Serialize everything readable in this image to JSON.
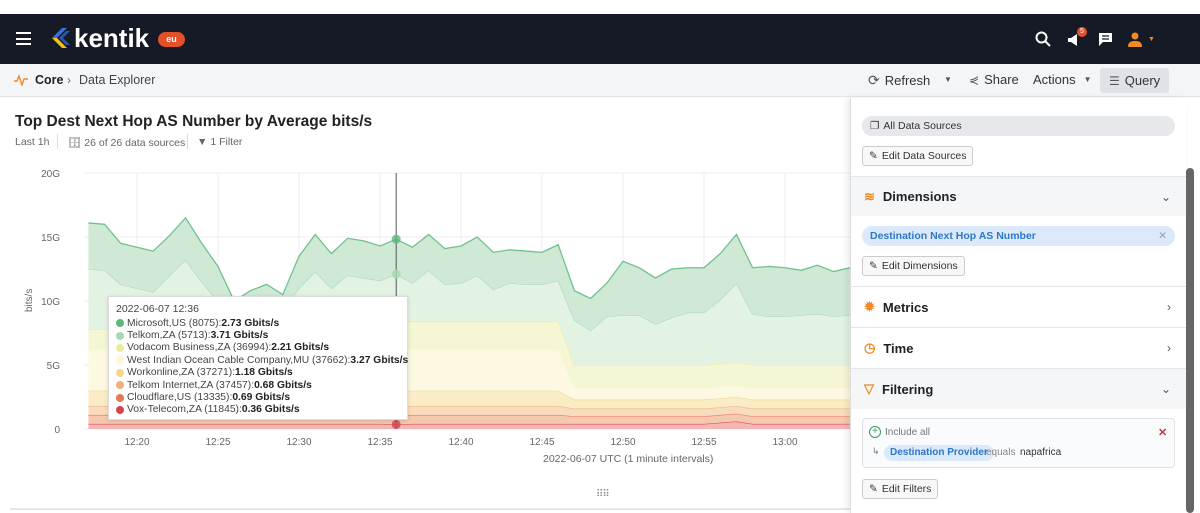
{
  "nav": {
    "brand": "kentik",
    "region_badge": "eu",
    "notification_count": "5",
    "icons": [
      "menu-icon",
      "search-icon",
      "notifications-icon",
      "chat-icon",
      "user-icon"
    ]
  },
  "breadcrumb": {
    "root": "Core",
    "current": "Data Explorer"
  },
  "toolbar": {
    "refresh": "Refresh",
    "share": "Share",
    "actions": "Actions",
    "query": "Query"
  },
  "chart_header": {
    "title": "Top Dest Next Hop AS Number by Average bits/s",
    "time_range": "Last 1h",
    "data_sources": "26 of 26 data sources",
    "filters": "1 Filter"
  },
  "panel": {
    "data_sources_pill": "All Data Sources",
    "edit_data_sources": "Edit Data Sources",
    "dimensions": "Dimensions",
    "dimension_pill": "Destination Next Hop AS Number",
    "edit_dimensions": "Edit Dimensions",
    "metrics": "Metrics",
    "time": "Time",
    "filtering": "Filtering",
    "filter_group": "Include all",
    "filter_field": "Destination Provider",
    "filter_op": "equals",
    "filter_value": "napafrica",
    "edit_filters": "Edit Filters"
  },
  "tooltip": {
    "time": "2022-06-07 12:36",
    "rows": [
      {
        "label": "Microsoft,US (8075): ",
        "value": "2.73 Gbits/s",
        "color": "#5cb87e"
      },
      {
        "label": "Telkom,ZA (5713): ",
        "value": "3.71 Gbits/s",
        "color": "#a6d8b2"
      },
      {
        "label": "Vodacom Business,ZA (36994): ",
        "value": "2.21 Gbits/s",
        "color": "#e9ec9e"
      },
      {
        "label": "West Indian Ocean Cable Company,MU (37662): ",
        "value": "3.27 Gbits/s",
        "color": "#fbf6d6"
      },
      {
        "label": "Workonline,ZA (37271): ",
        "value": "1.18 Gbits/s",
        "color": "#f1d98c"
      },
      {
        "label": "Telkom Internet,ZA (37457): ",
        "value": "0.68 Gbits/s",
        "color": "#efb07a"
      },
      {
        "label": "Cloudflare,US (13335): ",
        "value": "0.69 Gbits/s",
        "color": "#e8775a"
      },
      {
        "label": "Vox-Telecom,ZA (11845): ",
        "value": "0.36 Gbits/s",
        "color": "#d4434f"
      }
    ]
  },
  "chart_data": {
    "type": "area",
    "stacked": true,
    "xlabel": "2022-06-07 UTC (1 minute intervals)",
    "ylabel": "bits/s",
    "x_start": "12:17",
    "x_end": "13:04",
    "x_interval_minutes": 1,
    "x_ticks": [
      "12:20",
      "12:25",
      "12:30",
      "12:35",
      "12:40",
      "12:45",
      "12:50",
      "12:55",
      "13:00"
    ],
    "y_ticks": [
      "0",
      "5G",
      "10G",
      "15G",
      "20G"
    ],
    "ylim": [
      0,
      20
    ],
    "y_unit": "Gbits/s",
    "grid": true,
    "hover_x": "12:36",
    "series": [
      {
        "name": "Vox-Telecom,ZA (11845)",
        "color": "#d4434f",
        "values": [
          0.4,
          0.4,
          0.4,
          0.4,
          0.4,
          0.4,
          0.4,
          0.4,
          0.4,
          0.4,
          0.4,
          0.4,
          0.4,
          0.4,
          0.4,
          0.4,
          0.4,
          0.4,
          0.4,
          0.36,
          0.4,
          0.4,
          0.4,
          0.4,
          0.4,
          0.4,
          0.4,
          0.4,
          0.4,
          0.4,
          0.4,
          0.4,
          0.4,
          0.4,
          0.4,
          0.4,
          0.4,
          0.4,
          0.4,
          0.5,
          0.6,
          0.4,
          0.4,
          0.4,
          0.4,
          0.4,
          0.4,
          0.4
        ]
      },
      {
        "name": "Cloudflare,US (13335)",
        "color": "#e8775a",
        "values": [
          0.7,
          0.7,
          0.7,
          0.7,
          0.7,
          0.7,
          0.7,
          0.7,
          0.7,
          0.7,
          0.7,
          0.7,
          0.7,
          0.7,
          0.7,
          0.7,
          0.7,
          0.7,
          0.7,
          0.69,
          0.7,
          0.7,
          0.7,
          0.7,
          0.7,
          0.7,
          0.7,
          0.7,
          0.7,
          0.7,
          0.6,
          0.6,
          0.6,
          0.6,
          0.6,
          0.6,
          0.6,
          0.6,
          0.6,
          0.6,
          0.6,
          0.6,
          0.6,
          0.6,
          0.6,
          0.6,
          0.6,
          0.6
        ]
      },
      {
        "name": "Telkom Internet,ZA (37457)",
        "color": "#efb07a",
        "values": [
          0.7,
          0.7,
          0.7,
          0.7,
          0.7,
          0.7,
          0.7,
          0.7,
          0.7,
          0.7,
          0.7,
          0.7,
          0.7,
          0.7,
          0.7,
          0.7,
          0.7,
          0.7,
          0.7,
          0.68,
          0.7,
          0.7,
          0.7,
          0.7,
          0.7,
          0.7,
          0.7,
          0.7,
          0.7,
          0.7,
          0.6,
          0.6,
          0.6,
          0.6,
          0.6,
          0.6,
          0.6,
          0.6,
          0.6,
          0.6,
          0.6,
          0.6,
          0.6,
          0.6,
          0.6,
          0.6,
          0.6,
          0.6
        ]
      },
      {
        "name": "Workonline,ZA (37271)",
        "color": "#f1d98c",
        "values": [
          1.2,
          1.2,
          1.2,
          1.2,
          1.2,
          1.2,
          1.2,
          1.2,
          1.2,
          1.2,
          1.2,
          1.2,
          1.2,
          1.2,
          1.2,
          1.2,
          1.2,
          1.2,
          1.2,
          1.18,
          1.2,
          1.2,
          1.2,
          1.2,
          1.2,
          1.2,
          1.2,
          1.2,
          1.2,
          1.2,
          0.7,
          0.7,
          0.7,
          0.7,
          0.7,
          0.7,
          0.7,
          0.7,
          0.7,
          0.7,
          0.7,
          0.7,
          0.7,
          0.7,
          0.7,
          0.7,
          0.7,
          0.7
        ]
      },
      {
        "name": "West Indian Ocean Cable Company,MU (37662)",
        "color": "#fbf6d6",
        "values": [
          3.2,
          3.2,
          3.2,
          3.2,
          3.2,
          3.2,
          3.2,
          3.2,
          3.2,
          3.2,
          3.2,
          3.2,
          3.2,
          3.2,
          3.2,
          3.2,
          3.2,
          3.2,
          3.2,
          3.27,
          3.2,
          3.2,
          3.2,
          3.2,
          3.2,
          3.2,
          3.2,
          3.2,
          3.2,
          3.2,
          0.9,
          0.9,
          0.9,
          0.9,
          0.9,
          0.9,
          0.9,
          0.9,
          0.9,
          0.9,
          0.9,
          0.9,
          0.9,
          0.9,
          0.9,
          0.9,
          0.9,
          0.9
        ]
      },
      {
        "name": "Vodacom Business,ZA (36994)",
        "color": "#e9ec9e",
        "values": [
          1.6,
          1.6,
          1.6,
          1.6,
          1.6,
          1.6,
          1.6,
          1.6,
          1.6,
          1.6,
          1.6,
          1.6,
          1.6,
          2.2,
          2.2,
          2.2,
          2.2,
          2.2,
          2.2,
          2.21,
          2.2,
          2.2,
          2.2,
          2.2,
          2.2,
          2.2,
          2.2,
          2.2,
          2.2,
          2.2,
          1.8,
          1.8,
          1.8,
          1.8,
          1.8,
          1.8,
          1.8,
          1.8,
          1.8,
          1.8,
          1.8,
          1.8,
          1.8,
          1.8,
          1.8,
          1.8,
          1.8,
          1.8
        ]
      },
      {
        "name": "Telkom,ZA (5713)",
        "color": "#a6d8b2",
        "values": [
          4.7,
          4.6,
          3.5,
          3.2,
          2.9,
          4.2,
          5.4,
          3.7,
          2.2,
          1.2,
          1.7,
          2.0,
          1.5,
          2.6,
          3.9,
          2.6,
          3.6,
          3.4,
          3.2,
          3.71,
          3.0,
          4.0,
          2.9,
          3.0,
          3.6,
          2.5,
          3.0,
          2.9,
          2.9,
          3.2,
          3.5,
          2.7,
          3.8,
          3.9,
          3.9,
          3.2,
          3.7,
          4.1,
          4.1,
          5.0,
          6.2,
          4.0,
          3.8,
          3.8,
          3.9,
          4.0,
          3.8,
          3.9
        ]
      },
      {
        "name": "Microsoft,US (8075)",
        "color": "#5cb87e",
        "values": [
          3.6,
          3.6,
          3.2,
          3.2,
          3.2,
          3.1,
          3.3,
          3.0,
          2.7,
          1.0,
          1.3,
          1.5,
          1.2,
          2.5,
          2.9,
          2.7,
          2.9,
          2.9,
          2.7,
          2.73,
          2.8,
          2.8,
          2.8,
          2.9,
          3.0,
          2.9,
          2.6,
          2.6,
          2.5,
          2.8,
          2.3,
          2.5,
          2.6,
          4.2,
          3.7,
          3.6,
          3.8,
          3.5,
          3.5,
          3.6,
          3.8,
          3.6,
          3.9,
          3.8,
          3.5,
          3.8,
          3.5,
          3.7
        ]
      }
    ]
  }
}
